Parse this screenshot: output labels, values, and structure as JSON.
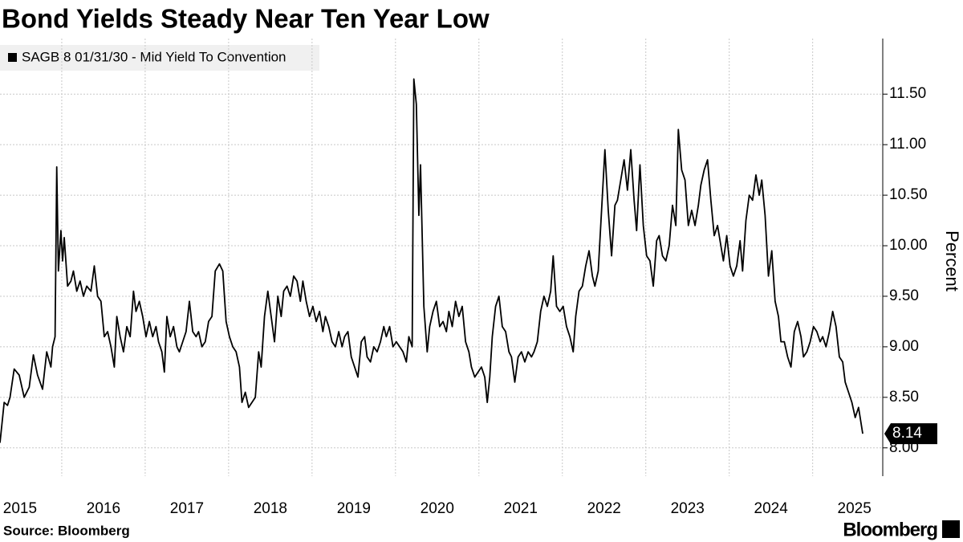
{
  "chart_data": {
    "type": "line",
    "title": "Bond Yields Steady Near Ten Year Low",
    "y_label": "Percent",
    "source": "Source: Bloomberg",
    "brand": "Bloomberg",
    "x": [
      2015.26,
      2015.31,
      2015.35,
      2015.38,
      2015.43,
      2015.49,
      2015.55,
      2015.61,
      2015.66,
      2015.71,
      2015.77,
      2015.82,
      2015.87,
      2015.89,
      2015.92,
      2015.94,
      2015.96,
      2015.99,
      2016.01,
      2016.03,
      2016.07,
      2016.11,
      2016.14,
      2016.18,
      2016.22,
      2016.26,
      2016.3,
      2016.35,
      2016.39,
      2016.43,
      2016.47,
      2016.51,
      2016.55,
      2016.59,
      2016.63,
      2016.66,
      2016.7,
      2016.74,
      2016.78,
      2016.82,
      2016.86,
      2016.89,
      2016.93,
      2016.97,
      2017.01,
      2017.05,
      2017.09,
      2017.13,
      2017.16,
      2017.2,
      2017.23,
      2017.26,
      2017.3,
      2017.34,
      2017.38,
      2017.41,
      2017.45,
      2017.49,
      2017.53,
      2017.57,
      2017.61,
      2017.64,
      2017.68,
      2017.72,
      2017.76,
      2017.8,
      2017.84,
      2017.89,
      2017.93,
      2017.97,
      2018.01,
      2018.05,
      2018.09,
      2018.13,
      2018.16,
      2018.2,
      2018.24,
      2018.28,
      2018.32,
      2018.36,
      2018.39,
      2018.43,
      2018.47,
      2018.51,
      2018.55,
      2018.59,
      2018.63,
      2018.66,
      2018.7,
      2018.74,
      2018.78,
      2018.82,
      2018.86,
      2018.89,
      2018.93,
      2018.97,
      2019.01,
      2019.05,
      2019.09,
      2019.13,
      2019.16,
      2019.2,
      2019.24,
      2019.28,
      2019.32,
      2019.36,
      2019.39,
      2019.43,
      2019.47,
      2019.51,
      2019.55,
      2019.59,
      2019.63,
      2019.66,
      2019.7,
      2019.74,
      2019.78,
      2019.82,
      2019.86,
      2019.89,
      2019.93,
      2019.97,
      2020.01,
      2020.05,
      2020.09,
      2020.13,
      2020.16,
      2020.2,
      2020.22,
      2020.25,
      2020.28,
      2020.3,
      2020.34,
      2020.38,
      2020.41,
      2020.45,
      2020.49,
      2020.53,
      2020.57,
      2020.61,
      2020.64,
      2020.68,
      2020.72,
      2020.76,
      2020.8,
      2020.84,
      2020.88,
      2020.91,
      2020.95,
      2020.99,
      2021.03,
      2021.07,
      2021.1,
      2021.13,
      2021.16,
      2021.2,
      2021.24,
      2021.28,
      2021.32,
      2021.36,
      2021.39,
      2021.43,
      2021.47,
      2021.51,
      2021.55,
      2021.59,
      2021.63,
      2021.66,
      2021.7,
      2021.74,
      2021.78,
      2021.82,
      2021.86,
      2021.89,
      2021.93,
      2021.97,
      2022.01,
      2022.05,
      2022.09,
      2022.13,
      2022.16,
      2022.2,
      2022.24,
      2022.28,
      2022.32,
      2022.36,
      2022.39,
      2022.43,
      2022.47,
      2022.51,
      2022.55,
      2022.59,
      2022.63,
      2022.66,
      2022.7,
      2022.74,
      2022.78,
      2022.82,
      2022.86,
      2022.89,
      2022.93,
      2022.97,
      2023.01,
      2023.05,
      2023.09,
      2023.13,
      2023.16,
      2023.2,
      2023.24,
      2023.28,
      2023.32,
      2023.36,
      2023.39,
      2023.43,
      2023.47,
      2023.51,
      2023.55,
      2023.59,
      2023.63,
      2023.66,
      2023.7,
      2023.74,
      2023.78,
      2023.82,
      2023.86,
      2023.89,
      2023.93,
      2023.97,
      2024.01,
      2024.05,
      2024.09,
      2024.13,
      2024.16,
      2024.2,
      2024.24,
      2024.28,
      2024.32,
      2024.36,
      2024.39,
      2024.43,
      2024.47,
      2024.51,
      2024.55,
      2024.59,
      2024.62,
      2024.66,
      2024.7,
      2024.74,
      2024.78,
      2024.82,
      2024.86,
      2024.89,
      2024.93,
      2024.97,
      2025.01,
      2025.05,
      2025.09,
      2025.12,
      2025.16,
      2025.2,
      2025.24,
      2025.28,
      2025.32,
      2025.36,
      2025.39,
      2025.43,
      2025.47,
      2025.51,
      2025.55,
      2025.6
    ],
    "series": [
      {
        "name": "SAGB 8 01/31/30 - Mid Yield To Convention",
        "color": "#000000",
        "values": [
          8.05,
          8.45,
          8.42,
          8.5,
          8.78,
          8.72,
          8.5,
          8.6,
          8.92,
          8.72,
          8.58,
          8.95,
          8.8,
          9.0,
          9.1,
          10.78,
          9.75,
          10.15,
          9.85,
          10.08,
          9.6,
          9.65,
          9.75,
          9.55,
          9.65,
          9.5,
          9.6,
          9.55,
          9.8,
          9.5,
          9.45,
          9.1,
          9.15,
          9.0,
          8.8,
          9.3,
          9.1,
          8.95,
          9.2,
          9.1,
          9.55,
          9.35,
          9.45,
          9.3,
          9.1,
          9.25,
          9.1,
          9.2,
          9.05,
          8.95,
          8.75,
          9.3,
          9.1,
          9.2,
          9.0,
          8.95,
          9.05,
          9.15,
          9.45,
          9.15,
          9.1,
          9.15,
          9.0,
          9.05,
          9.25,
          9.3,
          9.75,
          9.82,
          9.75,
          9.25,
          9.1,
          9.0,
          8.95,
          8.8,
          8.45,
          8.55,
          8.4,
          8.45,
          8.5,
          8.95,
          8.8,
          9.3,
          9.55,
          9.3,
          9.05,
          9.5,
          9.3,
          9.55,
          9.6,
          9.5,
          9.7,
          9.65,
          9.45,
          9.65,
          9.45,
          9.3,
          9.4,
          9.25,
          9.35,
          9.15,
          9.3,
          9.2,
          9.05,
          9.0,
          9.15,
          9.0,
          9.1,
          9.15,
          8.9,
          8.8,
          8.7,
          9.05,
          9.1,
          8.9,
          8.85,
          9.0,
          8.95,
          9.05,
          9.2,
          9.1,
          9.2,
          9.0,
          9.05,
          9.0,
          8.95,
          8.85,
          9.1,
          9.0,
          11.65,
          11.4,
          10.3,
          10.8,
          9.4,
          8.95,
          9.2,
          9.35,
          9.45,
          9.2,
          9.25,
          9.15,
          9.35,
          9.2,
          9.45,
          9.3,
          9.4,
          9.05,
          8.95,
          8.8,
          8.7,
          8.75,
          8.8,
          8.7,
          8.45,
          8.7,
          9.1,
          9.4,
          9.5,
          9.2,
          9.15,
          8.95,
          8.9,
          8.65,
          8.9,
          8.95,
          8.85,
          8.95,
          8.9,
          8.95,
          9.05,
          9.35,
          9.5,
          9.4,
          9.55,
          9.9,
          9.4,
          9.35,
          9.4,
          9.2,
          9.1,
          8.95,
          9.3,
          9.55,
          9.6,
          9.8,
          9.95,
          9.7,
          9.6,
          9.75,
          10.35,
          10.95,
          10.35,
          9.9,
          10.4,
          10.45,
          10.65,
          10.85,
          10.55,
          10.95,
          10.45,
          10.15,
          10.8,
          10.2,
          9.9,
          9.85,
          9.6,
          10.05,
          10.1,
          9.9,
          9.85,
          10.0,
          10.4,
          10.2,
          11.15,
          10.75,
          10.65,
          10.2,
          10.35,
          10.2,
          10.4,
          10.6,
          10.75,
          10.85,
          10.45,
          10.1,
          10.2,
          10.05,
          9.85,
          10.1,
          9.8,
          9.7,
          9.8,
          10.05,
          9.75,
          10.25,
          10.5,
          10.45,
          10.7,
          10.5,
          10.65,
          10.3,
          9.7,
          9.95,
          9.45,
          9.3,
          9.05,
          9.05,
          8.9,
          8.8,
          9.15,
          9.25,
          9.1,
          8.9,
          8.95,
          9.05,
          9.2,
          9.15,
          9.05,
          9.1,
          9.0,
          9.15,
          9.35,
          9.2,
          8.9,
          8.85,
          8.65,
          8.55,
          8.45,
          8.3,
          8.4,
          8.14
        ]
      }
    ],
    "last_value_label": {
      "value": 8.14,
      "label": "8.14"
    },
    "xlim": [
      2015.26,
      2025.84
    ],
    "xticks": [
      {
        "value": 2015.5,
        "label": "2015"
      },
      {
        "value": 2016.5,
        "label": "2016"
      },
      {
        "value": 2017.5,
        "label": "2017"
      },
      {
        "value": 2018.5,
        "label": "2018"
      },
      {
        "value": 2019.5,
        "label": "2019"
      },
      {
        "value": 2020.5,
        "label": "2020"
      },
      {
        "value": 2021.5,
        "label": "2021"
      },
      {
        "value": 2022.5,
        "label": "2022"
      },
      {
        "value": 2023.5,
        "label": "2023"
      },
      {
        "value": 2024.5,
        "label": "2024"
      },
      {
        "value": 2025.5,
        "label": "2025"
      }
    ],
    "ylim": [
      7.72,
      12.05
    ],
    "yticks": [
      {
        "value": 8,
        "label": "8.00"
      },
      {
        "value": 8.5,
        "label": "8.50"
      },
      {
        "value": 9,
        "label": "9.00"
      },
      {
        "value": 9.5,
        "label": "9.50"
      },
      {
        "value": 10,
        "label": "10.00"
      },
      {
        "value": 10.5,
        "label": "10.50"
      },
      {
        "value": 11,
        "label": "11.00"
      },
      {
        "value": 11.5,
        "label": "11.50"
      }
    ],
    "grid": true
  }
}
